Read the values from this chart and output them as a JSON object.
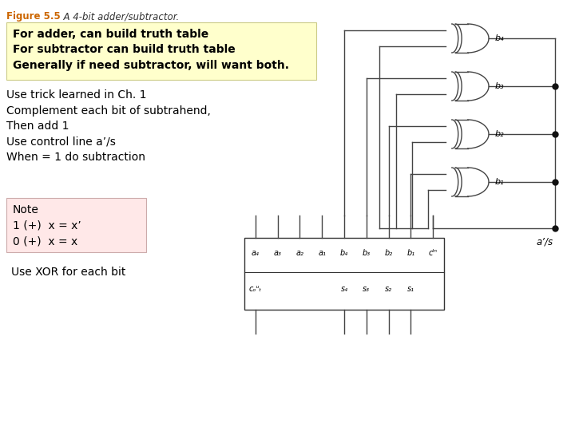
{
  "figure_label": "Figure 5.5",
  "figure_label_color": "#cc6600",
  "figure_caption": "  A 4-bit adder/subtractor.",
  "bg_color": "#ffffff",
  "yellow_box_text": "For adder, can build truth table\nFor subtractor can build truth table\nGenerally if need subtractor, will want both.",
  "yellow_box_bg": "#ffffcc",
  "yellow_box_border": "#cccc88",
  "main_text": "Use trick learned in Ch. 1\nComplement each bit of subtrahend,\nThen add 1\nUse control line a’/s\nWhen = 1 do subtraction",
  "note_box_text_lines": [
    "Note",
    "1 (+)  x = x’",
    "0 (+)  x = x"
  ],
  "note_box_bg": "#ffe8e8",
  "note_box_border": "#ccaaaa",
  "xor_text": "Use XOR for each bit",
  "gate_labels": [
    "b₄",
    "b₃",
    "b₂",
    "b₁"
  ],
  "as_label": "a’/s",
  "inputs_top": [
    "a₄",
    "a₃",
    "a₂",
    "a₁",
    "b₄",
    "b₃",
    "b₂",
    "b₁",
    "cᴵⁿ"
  ],
  "outputs_bot": [
    "cₒᵘₜ",
    "s₄",
    "s₃",
    "s₂",
    "s₁"
  ],
  "line_color": "#444444",
  "dot_color": "#111111"
}
